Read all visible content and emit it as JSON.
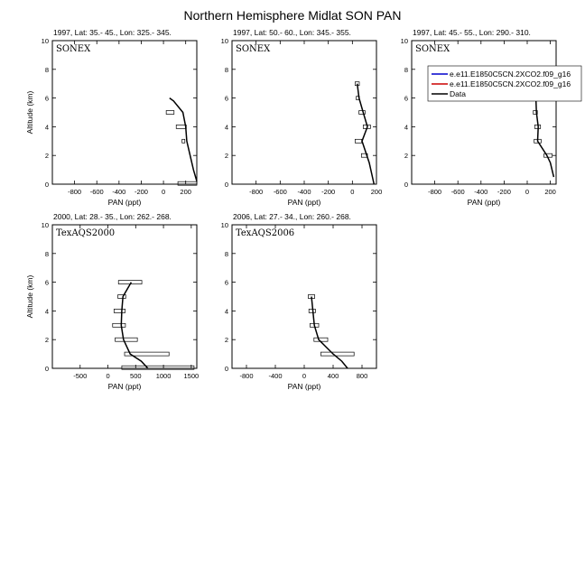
{
  "figure": {
    "title": "Northern Hemisphere Midlat SON PAN"
  },
  "chart_data": [
    {
      "type": "line",
      "subtitle": "1997, Lat: 35.- 45., Lon: 325.- 345.",
      "campaign": "SONEX",
      "xlabel": "PAN (ppt)",
      "ylabel": "Altitude (km)",
      "xlim": [
        -1000,
        300
      ],
      "ylim": [
        0,
        10
      ],
      "xticks": [
        -800,
        -600,
        -400,
        -200,
        0,
        200
      ],
      "yticks": [
        0,
        2,
        4,
        6,
        8,
        10
      ],
      "legend": false,
      "series": [
        {
          "name": "Data",
          "color": "#000000",
          "x": [
            300,
            270,
            240,
            210,
            200,
            175,
            90,
            55
          ],
          "y": [
            0.2,
            1.0,
            2.0,
            3.0,
            4.0,
            5.0,
            5.8,
            6.0
          ]
        }
      ],
      "error_bars": [
        {
          "y": 5.0,
          "x": 60,
          "width": 70
        },
        {
          "y": 4.0,
          "x": 160,
          "width": 90
        },
        {
          "y": 3.0,
          "x": 180,
          "width": 25
        },
        {
          "y": 0.05,
          "x": 220,
          "width": 180
        }
      ]
    },
    {
      "type": "line",
      "subtitle": "1997, Lat: 50.- 60., Lon: 345.- 355.",
      "campaign": "SONEX",
      "xlabel": "PAN (ppt)",
      "ylabel": "",
      "xlim": [
        -1000,
        200
      ],
      "ylim": [
        0,
        10
      ],
      "xticks": [
        -800,
        -600,
        -400,
        -200,
        0,
        200
      ],
      "yticks": [
        0,
        2,
        4,
        6,
        8,
        10
      ],
      "legend": false,
      "series": [
        {
          "name": "Data",
          "color": "#000000",
          "x": [
            180,
            140,
            80,
            125,
            90,
            55,
            45,
            40
          ],
          "y": [
            0.0,
            1.5,
            3.0,
            4.0,
            5.0,
            6.0,
            6.7,
            7.0
          ]
        }
      ],
      "error_bars": [
        {
          "y": 7.0,
          "x": 40,
          "width": 35
        },
        {
          "y": 6.0,
          "x": 45,
          "width": 25
        },
        {
          "y": 5.0,
          "x": 80,
          "width": 50
        },
        {
          "y": 4.0,
          "x": 120,
          "width": 60
        },
        {
          "y": 3.0,
          "x": 50,
          "width": 55
        },
        {
          "y": 2.0,
          "x": 100,
          "width": 50
        }
      ]
    },
    {
      "type": "line",
      "subtitle": "1997, Lat: 45.- 55., Lon: 290.- 310.",
      "campaign": "SONEX",
      "xlabel": "PAN (ppt)",
      "ylabel": "",
      "xlim": [
        -1000,
        250
      ],
      "ylim": [
        0,
        10
      ],
      "xticks": [
        -800,
        -600,
        -400,
        -200,
        0,
        200
      ],
      "yticks": [
        0,
        2,
        4,
        6,
        8,
        10
      ],
      "legend": true,
      "legend_position": "top-right",
      "legend_entries": [
        {
          "label": "e.e11.E1850C5CN.2XCO2.f09_g16",
          "color": "#0000cc"
        },
        {
          "label": "e.e11.E1850C5CN.2XCO2.f09_g16",
          "color": "#cc0000"
        },
        {
          "label": "Data",
          "color": "#000000"
        }
      ],
      "series": [
        {
          "name": "Data",
          "color": "#000000",
          "x": [
            230,
            200,
            170,
            90,
            95,
            80,
            75,
            80
          ],
          "y": [
            0.5,
            1.5,
            2.0,
            3.0,
            4.0,
            5.0,
            6.0,
            6.2
          ]
        }
      ],
      "error_bars": [
        {
          "y": 6.0,
          "x": 70,
          "width": 40
        },
        {
          "y": 5.0,
          "x": 70,
          "width": 35
        },
        {
          "y": 4.0,
          "x": 90,
          "width": 50
        },
        {
          "y": 3.0,
          "x": 90,
          "width": 60
        },
        {
          "y": 2.0,
          "x": 180,
          "width": 70
        }
      ]
    },
    {
      "type": "line",
      "subtitle": "2000, Lat: 28.- 35., Lon: 262.- 268.",
      "campaign": "TexAQS2000",
      "xlabel": "PAN (ppt)",
      "ylabel": "Altitude (km)",
      "xlim": [
        -1000,
        1600
      ],
      "ylim": [
        0,
        10
      ],
      "xticks": [
        -500,
        0,
        500,
        1000,
        1500
      ],
      "yticks": [
        0,
        2,
        4,
        6,
        8,
        10
      ],
      "legend": false,
      "series": [
        {
          "name": "Data",
          "color": "#000000",
          "x": [
            720,
            600,
            400,
            280,
            240,
            250,
            270,
            420
          ],
          "y": [
            0.0,
            0.5,
            1.0,
            2.0,
            3.0,
            4.0,
            5.0,
            6.0
          ]
        }
      ],
      "error_bars": [
        {
          "y": 6.0,
          "x": 400,
          "width": 420
        },
        {
          "y": 5.0,
          "x": 250,
          "width": 140
        },
        {
          "y": 4.0,
          "x": 210,
          "width": 200
        },
        {
          "y": 3.0,
          "x": 200,
          "width": 230
        },
        {
          "y": 2.0,
          "x": 330,
          "width": 400
        },
        {
          "y": 1.0,
          "x": 700,
          "width": 800
        },
        {
          "y": 0.05,
          "x": 900,
          "width": 1300
        }
      ]
    },
    {
      "type": "line",
      "subtitle": "2006, Lat: 27.- 34., Lon: 260.- 268.",
      "campaign": "TexAQS2006",
      "xlabel": "PAN (ppt)",
      "ylabel": "",
      "xlim": [
        -1000,
        1000
      ],
      "ylim": [
        0,
        10
      ],
      "xticks": [
        -800,
        -400,
        0,
        400,
        800
      ],
      "yticks": [
        0,
        2,
        4,
        6,
        8,
        10
      ],
      "legend": false,
      "series": [
        {
          "name": "Data",
          "color": "#000000",
          "x": [
            600,
            520,
            400,
            200,
            140,
            120,
            110,
            100
          ],
          "y": [
            0.0,
            0.5,
            1.0,
            2.0,
            3.0,
            4.0,
            4.5,
            5.0
          ]
        }
      ],
      "error_bars": [
        {
          "y": 5.0,
          "x": 100,
          "width": 90
        },
        {
          "y": 4.0,
          "x": 110,
          "width": 90
        },
        {
          "y": 3.0,
          "x": 140,
          "width": 120
        },
        {
          "y": 2.0,
          "x": 230,
          "width": 190
        },
        {
          "y": 1.0,
          "x": 460,
          "width": 460
        }
      ]
    }
  ]
}
